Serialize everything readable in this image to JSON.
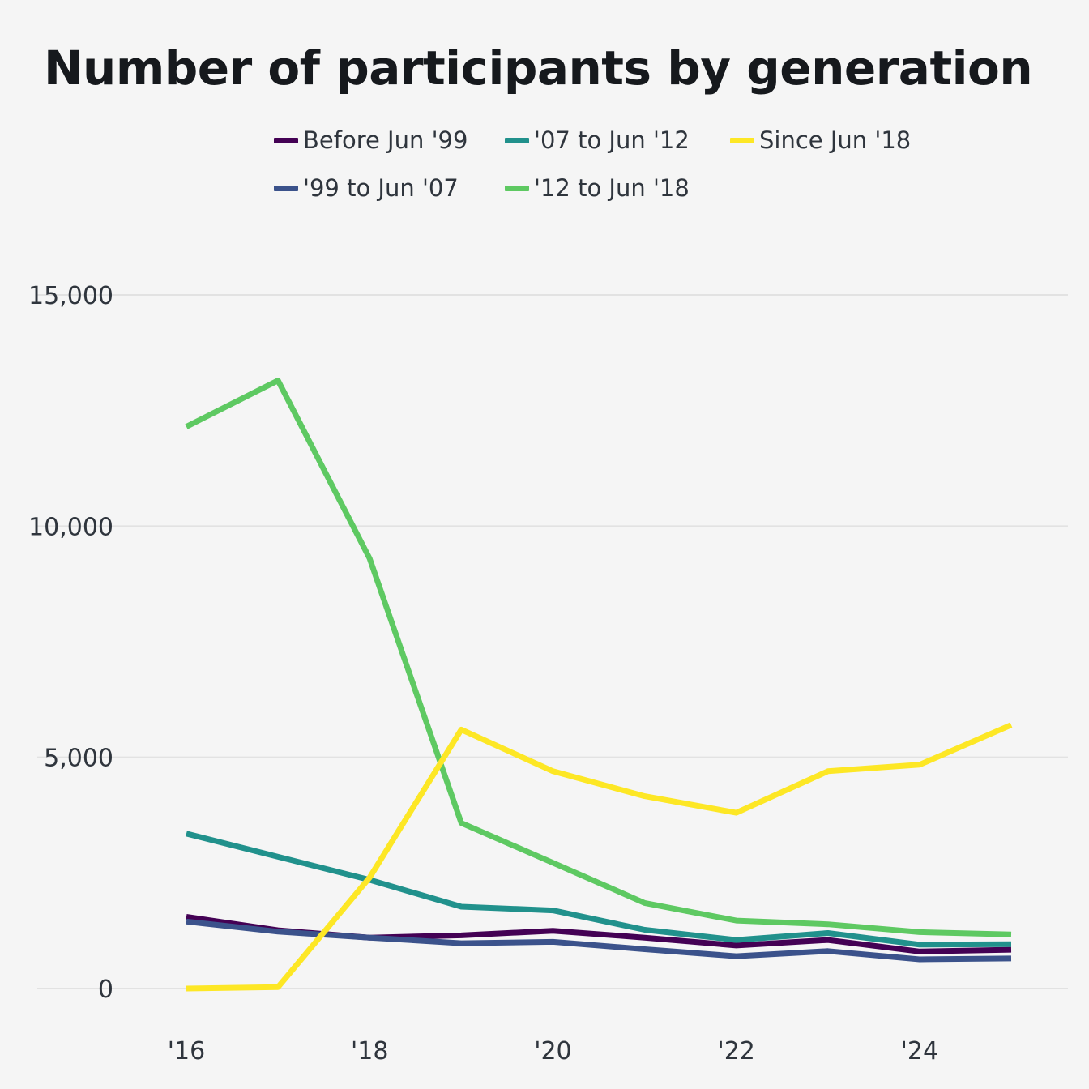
{
  "chart_data": {
    "type": "line",
    "title": "Number of participants by generation",
    "xlabel": "",
    "ylabel": "",
    "x": [
      2016,
      2017,
      2018,
      2019,
      2020,
      2021,
      2022,
      2023,
      2024,
      2025
    ],
    "xlim": [
      2016,
      2025
    ],
    "ylim": [
      0,
      15000
    ],
    "x_ticks": [
      {
        "value": 2016,
        "label": "'16"
      },
      {
        "value": 2018,
        "label": "'18"
      },
      {
        "value": 2020,
        "label": "'20"
      },
      {
        "value": 2022,
        "label": "'22"
      },
      {
        "value": 2024,
        "label": "'24"
      }
    ],
    "y_ticks": [
      {
        "value": 0,
        "label": "0"
      },
      {
        "value": 5000,
        "label": "5,000"
      },
      {
        "value": 10000,
        "label": "10,000"
      },
      {
        "value": 15000,
        "label": "15,000"
      }
    ],
    "grid": "horizontal",
    "legend_position": "top",
    "series": [
      {
        "name": "Before Jun '99",
        "color": "#440154",
        "values": [
          1550,
          1260,
          1100,
          1150,
          1250,
          1100,
          930,
          1050,
          800,
          840
        ]
      },
      {
        "name": "'99 to Jun '07",
        "color": "#3b528b",
        "values": [
          1450,
          1230,
          1100,
          980,
          1010,
          850,
          700,
          810,
          630,
          650
        ]
      },
      {
        "name": "'07 to Jun '12",
        "color": "#21918c",
        "values": [
          3350,
          2850,
          2350,
          1770,
          1690,
          1270,
          1050,
          1200,
          950,
          960
        ]
      },
      {
        "name": "'12 to Jun '18",
        "color": "#5ec962",
        "values": [
          12150,
          13150,
          9300,
          3580,
          2720,
          1850,
          1470,
          1390,
          1220,
          1170
        ]
      },
      {
        "name": "Since Jun '18",
        "color": "#fde725",
        "values": [
          0,
          30,
          2400,
          5600,
          4700,
          4160,
          3800,
          4700,
          4840,
          5700
        ]
      }
    ]
  }
}
